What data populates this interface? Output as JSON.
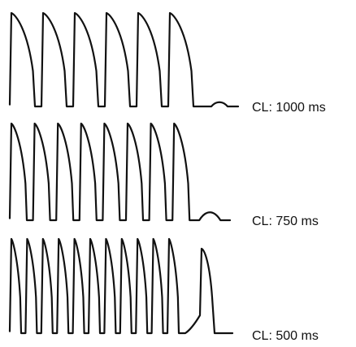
{
  "chart_data": [
    {
      "type": "line",
      "label": "CL: 1000 ms",
      "beats": 6,
      "trailing": "small-bump"
    },
    {
      "type": "line",
      "label": "CL: 750 ms",
      "beats": 8,
      "trailing": "medium-bump"
    },
    {
      "type": "line",
      "label": "CL: 500 ms",
      "beats": 11,
      "trailing": "late-full-action-potential"
    }
  ],
  "colors": {
    "trace": "#111111",
    "background": "#ffffff"
  }
}
